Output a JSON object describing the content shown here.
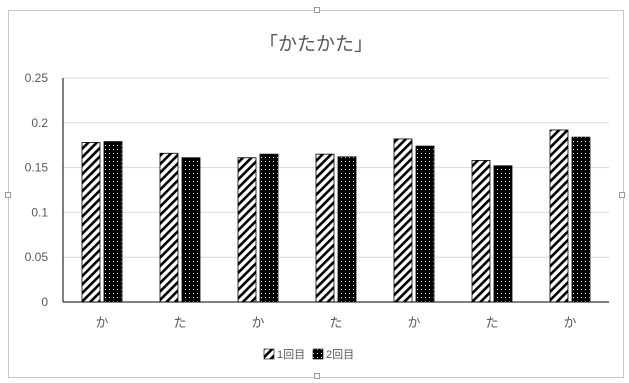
{
  "chart_data": {
    "type": "bar",
    "title": "「かたかた」",
    "categories": [
      "か",
      "た",
      "か",
      "た",
      "か",
      "た",
      "か"
    ],
    "series": [
      {
        "name": "1回目",
        "pattern": "diagonal-stripes",
        "values": [
          0.178,
          0.166,
          0.161,
          0.165,
          0.182,
          0.158,
          0.192
        ]
      },
      {
        "name": "2回目",
        "pattern": "dots",
        "values": [
          0.179,
          0.161,
          0.165,
          0.162,
          0.174,
          0.152,
          0.184
        ]
      }
    ],
    "yticks": [
      "0",
      "0.05",
      "0.1",
      "0.15",
      "0.2",
      "0.25"
    ],
    "ylim": [
      0,
      0.25
    ],
    "grid": true,
    "legend": "bottom",
    "colors": {
      "bar_fill": "#000000",
      "gridline": "#d9d9d9",
      "axis": "#000000",
      "text": "#595959"
    }
  }
}
